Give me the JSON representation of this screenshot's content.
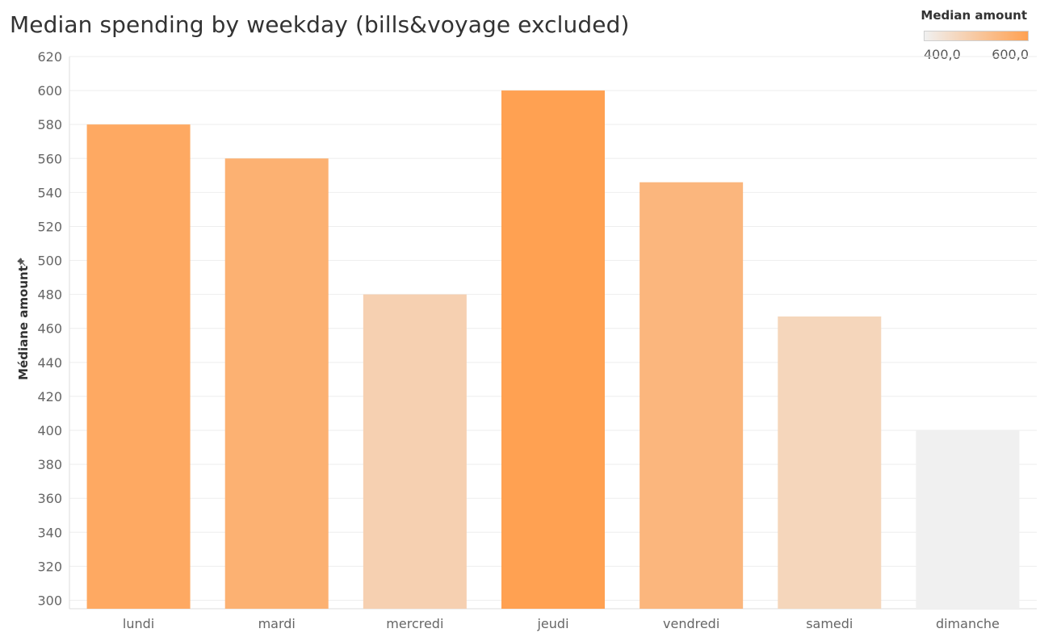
{
  "chart_data": {
    "type": "bar",
    "title": "Median spending by weekday (bills&voyage excluded)",
    "xlabel": "",
    "ylabel": "Médiane amount",
    "categories": [
      "lundi",
      "mardi",
      "mercredi",
      "jeudi",
      "vendredi",
      "samedi",
      "dimanche"
    ],
    "values": [
      580,
      560,
      480,
      600,
      546,
      467,
      400
    ],
    "ylim": [
      295,
      620
    ],
    "yticks": [
      300,
      320,
      340,
      360,
      380,
      400,
      420,
      440,
      460,
      480,
      500,
      520,
      540,
      560,
      580,
      600,
      620
    ],
    "grid": "horizontal",
    "color_legend": {
      "title": "Median amount",
      "min": 400,
      "max": 600,
      "min_label": "400,0",
      "max_label": "600,0",
      "color_low": "#f0f0f0",
      "color_high": "#ffa152",
      "placement": "top-right"
    },
    "pin_icon": "pin-icon"
  }
}
